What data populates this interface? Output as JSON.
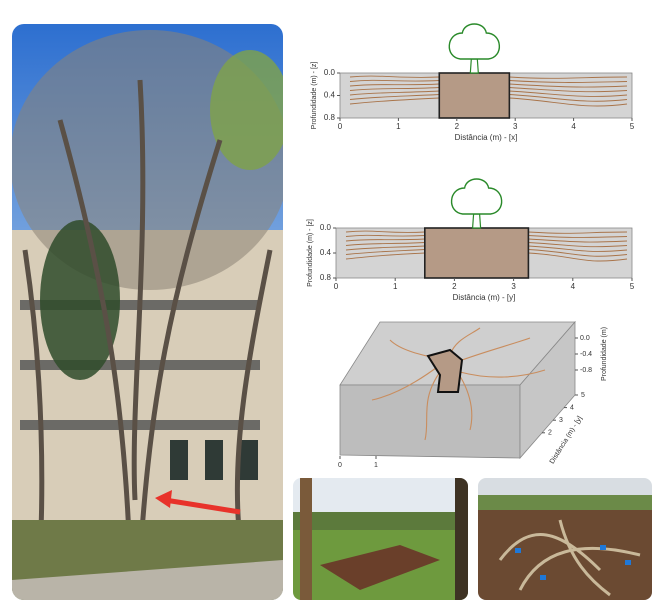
{
  "chart_data": [
    {
      "type": "profile",
      "xlabel": "Distância (m) - [x]",
      "ylabel": "Profundidade (m) - [z]",
      "xlim": [
        0,
        5
      ],
      "ylim": [
        0,
        0.8
      ],
      "xticks": [
        0,
        1,
        2,
        3,
        4,
        5
      ],
      "yticks": [
        {
          "value": 0,
          "label": "0.0"
        },
        0.4,
        0.8
      ],
      "trench": [
        1.7,
        2.9
      ]
    },
    {
      "type": "profile",
      "xlabel": "Distância (m) - [y]",
      "ylabel": "Profundidade (m) - [z]",
      "xlim": [
        0,
        5
      ],
      "ylim": [
        0,
        0.8
      ],
      "xticks": [
        0,
        1,
        2,
        3,
        4,
        5
      ],
      "yticks": [
        {
          "value": 0,
          "label": "0.0"
        },
        0.4,
        0.8
      ],
      "trench": [
        1.5,
        3.25
      ]
    },
    {
      "type": "3d-profile",
      "zlabel": "Profundidade (m)",
      "ylabel": "Distância (m) - [y]",
      "zlim": [
        -0.8,
        0
      ],
      "zticks": [
        {
          "value": 0,
          "label": "0.0"
        },
        -0.4,
        -0.8
      ],
      "ylim": [
        0,
        5
      ],
      "yticks": [
        2,
        3,
        4,
        5
      ],
      "xlim": [
        0,
        5
      ],
      "xticks": [
        0,
        1
      ]
    }
  ]
}
